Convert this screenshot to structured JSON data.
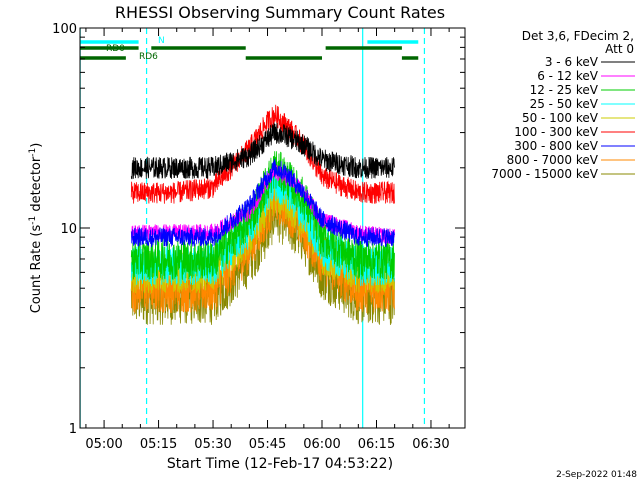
{
  "chart_data": {
    "type": "line",
    "title": "RHESSI Observing Summary Count Rates",
    "xlabel": "Start Time (12-Feb-17 04:53:22)",
    "ylabel_main": "Count Rate (s",
    "ylabel_sup": "-1",
    "ylabel_rest": " detector",
    "ylabel_sup2": "-1",
    "ylabel_end": ")",
    "y_scale": "log",
    "ylim": [
      1,
      100
    ],
    "xlim_minutes": [
      -6.63,
      99.37
    ],
    "x_tick_labels": [
      "05:00",
      "05:15",
      "05:30",
      "05:45",
      "06:00",
      "06:15",
      "06:30"
    ],
    "x_tick_minutes": [
      0,
      15,
      30,
      45,
      60,
      75,
      90
    ],
    "y_tick_labels": [
      "1",
      "10",
      "100"
    ],
    "y_tick_values": [
      1,
      10,
      100
    ],
    "date_stamp": "2-Sep-2022 01:48",
    "legend": {
      "header_line1": "Det 3,6, FDecim 2,",
      "header_line2": "Att 0",
      "entries": [
        {
          "label": "3 - 6 keV",
          "color": "#000000"
        },
        {
          "label": "6 - 12 keV",
          "color": "#ff00ff"
        },
        {
          "label": "12 - 25 keV",
          "color": "#00cc00"
        },
        {
          "label": "25 - 50 keV",
          "color": "#00ffff"
        },
        {
          "label": "50 - 100 keV",
          "color": "#cccc00"
        },
        {
          "label": "100 - 300 keV",
          "color": "#ff0000"
        },
        {
          "label": "300 - 800 keV",
          "color": "#0000ff"
        },
        {
          "label": "800 - 7000 keV",
          "color": "#ff8800"
        },
        {
          "label": "7000 - 15000 keV",
          "color": "#888800"
        }
      ]
    },
    "flag_bars": [
      {
        "label": "N",
        "color": "#00ffff",
        "segments_minutes": [
          [
            -6.6,
            9.5
          ],
          [
            72.5,
            86.5
          ]
        ],
        "level": "top"
      },
      {
        "label": "RD0",
        "color": "#006600",
        "segments_minutes": [
          [
            -6.6,
            9.5
          ],
          [
            13,
            39
          ],
          [
            61,
            82
          ]
        ],
        "level": "middle"
      },
      {
        "label": "RD6",
        "color": "#006600",
        "segments_minutes": [
          [
            -6.6,
            6
          ],
          [
            39,
            60
          ],
          [
            82,
            86.5
          ]
        ],
        "level": "bottom"
      }
    ],
    "vertical_markers": [
      {
        "minute": -6.6,
        "style": "solid",
        "color": "#00ffff"
      },
      {
        "minute": 11.7,
        "style": "dashed",
        "color": "#00ffff"
      },
      {
        "minute": 71.2,
        "style": "solid",
        "color": "#00ffff"
      },
      {
        "minute": 88.2,
        "style": "dashed",
        "color": "#00ffff"
      }
    ],
    "data_range_minutes": [
      7.5,
      80
    ],
    "series": [
      {
        "name": "3 - 6 keV",
        "color": "#000000",
        "x_minutes": [
          7.5,
          20,
          30,
          40,
          45,
          47,
          50,
          55,
          60,
          70,
          80
        ],
        "values": [
          20,
          20,
          20,
          23,
          28,
          30,
          29,
          26,
          22,
          20,
          20
        ],
        "noise": 0.08
      },
      {
        "name": "6 - 12 keV",
        "color": "#ff00ff",
        "x_minutes": [
          7.5,
          20,
          30,
          40,
          45,
          47,
          50,
          55,
          60,
          70,
          80
        ],
        "values": [
          9.5,
          9.5,
          9.5,
          12,
          17,
          19,
          18,
          15,
          11,
          9.5,
          9
        ],
        "noise": 0.06
      },
      {
        "name": "12 - 25 keV",
        "color": "#00cc00",
        "x_minutes": [
          7.5,
          20,
          30,
          40,
          45,
          47,
          50,
          55,
          60,
          70,
          80
        ],
        "values": [
          7,
          7,
          7,
          11,
          17,
          20,
          18,
          14,
          9,
          7,
          7
        ],
        "noise": 0.15
      },
      {
        "name": "25 - 50 keV",
        "color": "#00ffff",
        "x_minutes": [
          7.5,
          20,
          30,
          40,
          45,
          47,
          50,
          55,
          60,
          70,
          80
        ],
        "values": [
          6.5,
          6.5,
          6.5,
          10,
          15,
          17,
          16,
          12,
          8,
          6.5,
          6.5
        ],
        "noise": 0.15
      },
      {
        "name": "50 - 100 keV",
        "color": "#cccc00",
        "x_minutes": [
          7.5,
          20,
          30,
          40,
          45,
          47,
          50,
          55,
          60,
          70,
          80
        ],
        "values": [
          6,
          6,
          6,
          9,
          13,
          15,
          14,
          11,
          7.5,
          6,
          6
        ],
        "noise": 0.15
      },
      {
        "name": "100 - 300 keV",
        "color": "#ff0000",
        "x_minutes": [
          7.5,
          20,
          30,
          40,
          45,
          47,
          50,
          55,
          60,
          70,
          80
        ],
        "values": [
          15,
          15,
          16,
          25,
          34,
          37,
          33,
          26,
          18,
          15,
          15
        ],
        "noise": 0.08
      },
      {
        "name": "300 - 800 keV",
        "color": "#0000ff",
        "x_minutes": [
          7.5,
          20,
          30,
          40,
          45,
          47,
          50,
          55,
          60,
          70,
          80
        ],
        "values": [
          9,
          9,
          9,
          13,
          18,
          20,
          19,
          15,
          11,
          9,
          9
        ],
        "noise": 0.07
      },
      {
        "name": "800 - 7000 keV",
        "color": "#ff8800",
        "x_minutes": [
          7.5,
          20,
          30,
          40,
          45,
          47,
          50,
          55,
          60,
          70,
          80
        ],
        "values": [
          5,
          5,
          5,
          8,
          12,
          14,
          13,
          10,
          7,
          5,
          5
        ],
        "noise": 0.18
      },
      {
        "name": "7000 - 15000 keV",
        "color": "#888800",
        "x_minutes": [
          7.5,
          20,
          30,
          40,
          45,
          47,
          50,
          55,
          60,
          70,
          80
        ],
        "values": [
          4.5,
          4.5,
          4.5,
          7,
          10,
          12,
          11,
          9,
          6,
          4.5,
          4.5
        ],
        "noise": 0.2
      }
    ]
  }
}
